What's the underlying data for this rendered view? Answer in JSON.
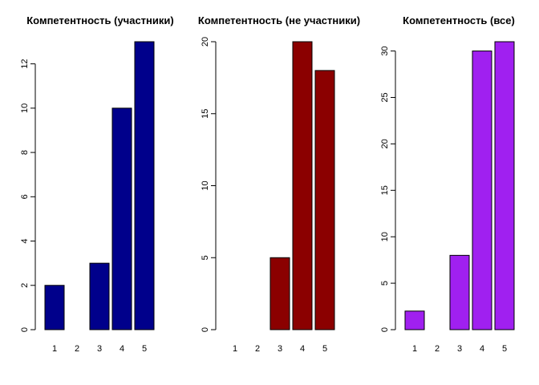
{
  "chart_data": [
    {
      "type": "bar",
      "title": "Компетентность  (участники)",
      "categories": [
        "1",
        "2",
        "3",
        "4",
        "5"
      ],
      "values": [
        2,
        0,
        3,
        10,
        13
      ],
      "ylim": [
        0,
        13
      ],
      "yticks": [
        0,
        2,
        4,
        6,
        8,
        10,
        12
      ],
      "ytick_labels": [
        "0",
        "2",
        "4",
        "6",
        "8",
        "10",
        "12"
      ],
      "color": "#00008B",
      "xlabel": "",
      "ylabel": "",
      "grid": false
    },
    {
      "type": "bar",
      "title": "Компетентность  (не участники)",
      "categories": [
        "1",
        "2",
        "3",
        "4",
        "5"
      ],
      "values": [
        0,
        0,
        5,
        20,
        18
      ],
      "ylim": [
        0,
        20
      ],
      "yticks": [
        0,
        5,
        10,
        15,
        20
      ],
      "ytick_labels": [
        "0",
        "5",
        "10",
        "15",
        "20"
      ],
      "color": "#8B0000",
      "xlabel": "",
      "ylabel": "",
      "grid": false
    },
    {
      "type": "bar",
      "title": "Компетентность  (все)",
      "categories": [
        "1",
        "2",
        "3",
        "4",
        "5"
      ],
      "values": [
        2,
        0,
        8,
        30,
        31
      ],
      "ylim": [
        0,
        31
      ],
      "yticks": [
        0,
        5,
        10,
        15,
        20,
        25,
        30
      ],
      "ytick_labels": [
        "0",
        "5",
        "10",
        "15",
        "20",
        "25",
        "30"
      ],
      "color": "#A020F0",
      "xlabel": "",
      "ylabel": "",
      "grid": false
    }
  ]
}
